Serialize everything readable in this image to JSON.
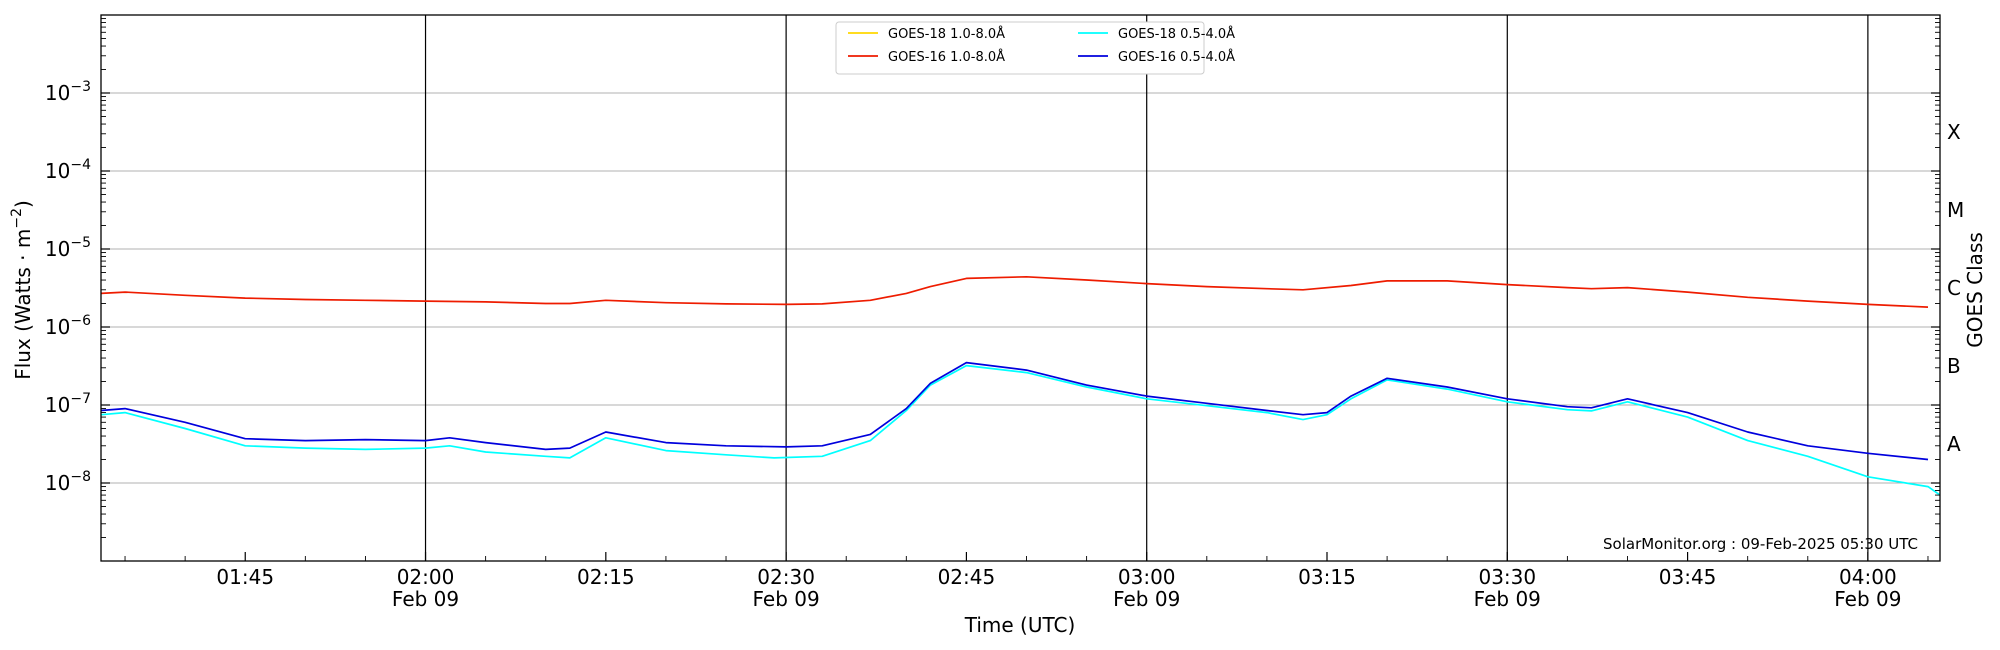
{
  "chart_data": {
    "type": "line",
    "ylabel": "Flux (Watts · m",
    "ylabel_sup": "−2",
    "ylabel_close": ")",
    "xlabel": "Time (UTC)",
    "right_label": "GOES Class",
    "credit": "SolarMonitor.org : 09-Feb-2025 05:30 UTC",
    "y_scale": "log",
    "ylim": [
      1e-09,
      0.01
    ],
    "xlim": [
      "01:33",
      "04:06"
    ],
    "grid": "horizontal",
    "legend_position": "top-center",
    "y_ticks": [
      {
        "value": 1e-08,
        "base": "10",
        "exp": "−8"
      },
      {
        "value": 1e-07,
        "base": "10",
        "exp": "−7"
      },
      {
        "value": 1e-06,
        "base": "10",
        "exp": "−6"
      },
      {
        "value": 1e-05,
        "base": "10",
        "exp": "−5"
      },
      {
        "value": 0.0001,
        "base": "10",
        "exp": "−4"
      },
      {
        "value": 0.001,
        "base": "10",
        "exp": "−3"
      }
    ],
    "classes": [
      {
        "label": "A",
        "value": 3.16e-08
      },
      {
        "label": "B",
        "value": 3.16e-07
      },
      {
        "label": "C",
        "value": 3.16e-06
      },
      {
        "label": "M",
        "value": 3.16e-05
      },
      {
        "label": "X",
        "value": 0.000316
      }
    ],
    "x_ticks": [
      {
        "t": "01:45",
        "label": "01:45",
        "date": ""
      },
      {
        "t": "02:00",
        "label": "02:00",
        "date": "Feb 09"
      },
      {
        "t": "02:15",
        "label": "02:15",
        "date": ""
      },
      {
        "t": "02:30",
        "label": "02:30",
        "date": "Feb 09"
      },
      {
        "t": "02:45",
        "label": "02:45",
        "date": ""
      },
      {
        "t": "03:00",
        "label": "03:00",
        "date": "Feb 09"
      },
      {
        "t": "03:15",
        "label": "03:15",
        "date": ""
      },
      {
        "t": "03:30",
        "label": "03:30",
        "date": "Feb 09"
      },
      {
        "t": "03:45",
        "label": "03:45",
        "date": ""
      },
      {
        "t": "04:00",
        "label": "04:00",
        "date": "Feb 09"
      }
    ],
    "vlines": [
      "02:00",
      "02:30",
      "03:00",
      "03:30",
      "04:00"
    ],
    "series": [
      {
        "name": "GOES-18 1.0-8.0Å",
        "color": "#ffd700",
        "x": [],
        "y": []
      },
      {
        "name": "GOES-16 1.0-8.0Å",
        "color": "#ee1c00",
        "x": [
          "01:33",
          "01:35",
          "01:40",
          "01:45",
          "01:50",
          "01:55",
          "02:00",
          "02:05",
          "02:10",
          "02:12",
          "02:15",
          "02:20",
          "02:25",
          "02:30",
          "02:33",
          "02:37",
          "02:40",
          "02:42",
          "02:45",
          "02:50",
          "02:55",
          "03:00",
          "03:05",
          "03:10",
          "03:13",
          "03:17",
          "03:20",
          "03:25",
          "03:30",
          "03:35",
          "03:37",
          "03:40",
          "03:45",
          "03:50",
          "03:55",
          "04:00",
          "04:05"
        ],
        "y": [
          2.7e-06,
          2.8e-06,
          2.55e-06,
          2.35e-06,
          2.25e-06,
          2.2e-06,
          2.15e-06,
          2.1e-06,
          2e-06,
          2e-06,
          2.2e-06,
          2.05e-06,
          1.98e-06,
          1.95e-06,
          1.98e-06,
          2.2e-06,
          2.7e-06,
          3.3e-06,
          4.2e-06,
          4.4e-06,
          4e-06,
          3.6e-06,
          3.3e-06,
          3.1e-06,
          3e-06,
          3.4e-06,
          3.9e-06,
          3.9e-06,
          3.5e-06,
          3.2e-06,
          3.1e-06,
          3.2e-06,
          2.8e-06,
          2.4e-06,
          2.15e-06,
          1.95e-06,
          1.8e-06
        ]
      },
      {
        "name": "GOES-18 0.5-4.0Å",
        "color": "#00ffff",
        "x": [
          "01:33",
          "01:35",
          "01:40",
          "01:45",
          "01:50",
          "01:55",
          "02:00",
          "02:02",
          "02:05",
          "02:10",
          "02:12",
          "02:15",
          "02:20",
          "02:25",
          "02:29",
          "02:33",
          "02:37",
          "02:40",
          "02:42",
          "02:45",
          "02:50",
          "02:55",
          "03:00",
          "03:05",
          "03:10",
          "03:13",
          "03:15",
          "03:17",
          "03:20",
          "03:25",
          "03:30",
          "03:35",
          "03:37",
          "03:40",
          "03:45",
          "03:50",
          "03:55",
          "04:00",
          "04:05",
          "04:06"
        ],
        "y": [
          7.5e-08,
          8e-08,
          5e-08,
          3e-08,
          2.8e-08,
          2.7e-08,
          2.8e-08,
          3e-08,
          2.5e-08,
          2.2e-08,
          2.1e-08,
          3.8e-08,
          2.6e-08,
          2.3e-08,
          2.1e-08,
          2.2e-08,
          3.5e-08,
          8.5e-08,
          1.8e-07,
          3.2e-07,
          2.6e-07,
          1.7e-07,
          1.2e-07,
          9.8e-08,
          8e-08,
          6.5e-08,
          7.5e-08,
          1.2e-07,
          2.1e-07,
          1.6e-07,
          1.1e-07,
          8.7e-08,
          8.4e-08,
          1.1e-07,
          7e-08,
          3.5e-08,
          2.2e-08,
          1.2e-08,
          9e-09,
          7e-09
        ]
      },
      {
        "name": "GOES-16 0.5-4.0Å",
        "color": "#0000dd",
        "x": [
          "01:33",
          "01:35",
          "01:40",
          "01:45",
          "01:50",
          "01:55",
          "02:00",
          "02:02",
          "02:05",
          "02:10",
          "02:12",
          "02:15",
          "02:20",
          "02:25",
          "02:30",
          "02:33",
          "02:37",
          "02:40",
          "02:42",
          "02:45",
          "02:50",
          "02:55",
          "03:00",
          "03:05",
          "03:10",
          "03:13",
          "03:15",
          "03:17",
          "03:20",
          "03:25",
          "03:30",
          "03:35",
          "03:37",
          "03:40",
          "03:45",
          "03:50",
          "03:55",
          "04:00",
          "04:05"
        ],
        "y": [
          8.5e-08,
          9e-08,
          6e-08,
          3.7e-08,
          3.5e-08,
          3.6e-08,
          3.5e-08,
          3.8e-08,
          3.3e-08,
          2.7e-08,
          2.8e-08,
          4.5e-08,
          3.3e-08,
          3e-08,
          2.9e-08,
          3e-08,
          4.2e-08,
          9e-08,
          1.9e-07,
          3.5e-07,
          2.8e-07,
          1.8e-07,
          1.3e-07,
          1.05e-07,
          8.5e-08,
          7.5e-08,
          8e-08,
          1.3e-07,
          2.2e-07,
          1.7e-07,
          1.2e-07,
          9.5e-08,
          9.2e-08,
          1.2e-07,
          8e-08,
          4.5e-08,
          3e-08,
          2.4e-08,
          2e-08
        ]
      }
    ]
  }
}
